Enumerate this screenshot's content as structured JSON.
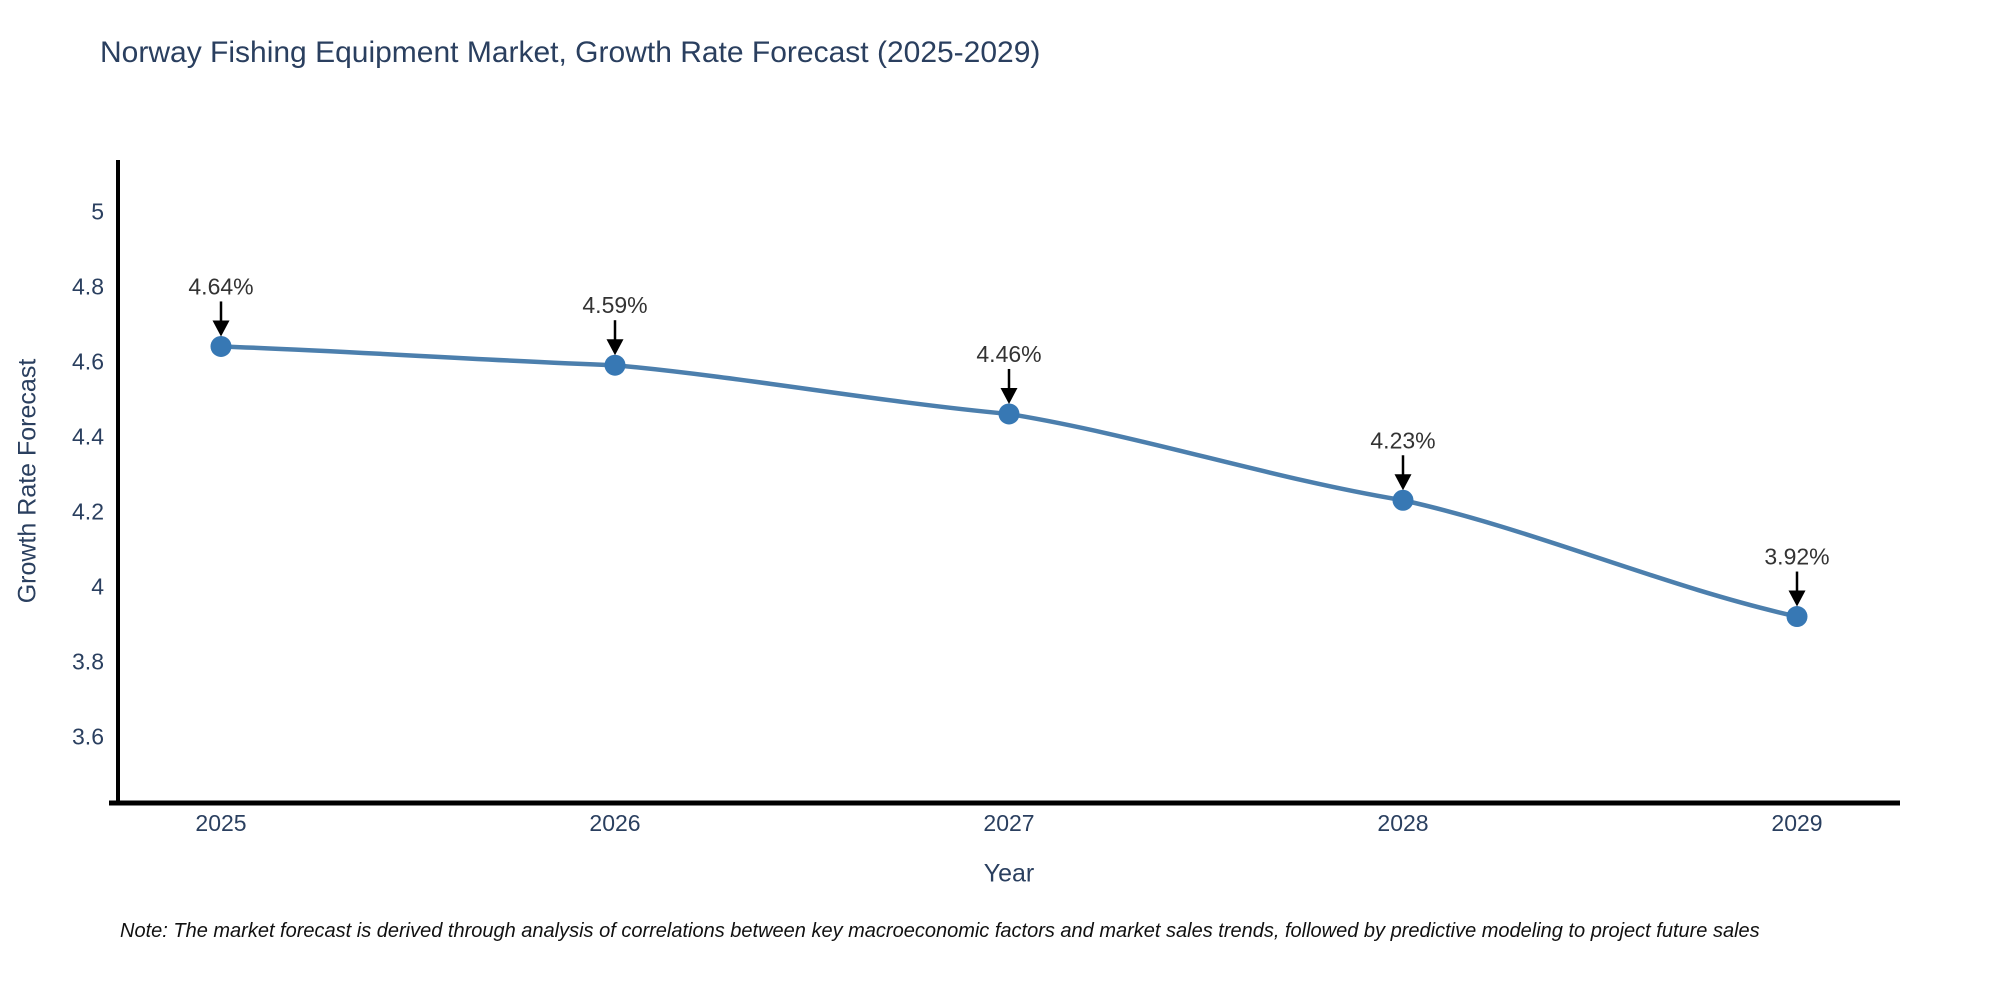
{
  "title": "Norway Fishing Equipment Market, Growth Rate Forecast (2025-2029)",
  "note": "Note: The market forecast is derived through analysis of correlations between key macroeconomic factors and market sales trends, followed by predictive modeling to project future sales",
  "chart_data": {
    "type": "line",
    "title": "Norway Fishing Equipment Market, Growth Rate Forecast (2025-2029)",
    "xlabel": "Year",
    "ylabel": "Growth Rate Forecast",
    "categories": [
      "2025",
      "2026",
      "2027",
      "2028",
      "2029"
    ],
    "series": [
      {
        "name": "Growth Rate Forecast",
        "values": [
          4.64,
          4.59,
          4.46,
          4.23,
          3.92
        ]
      }
    ],
    "point_labels": [
      "4.64%",
      "4.59%",
      "4.46%",
      "4.23%",
      "3.92%"
    ],
    "y_ticks": [
      5,
      4.8,
      4.6,
      4.4,
      4.2,
      4,
      3.8,
      3.6
    ],
    "ylim": [
      3.423,
      5.137
    ],
    "grid": false,
    "legend_position": "none",
    "annotation_style": "black-down-arrows",
    "colors": {
      "line": "#4c7fad",
      "marker": "#3778b4",
      "axis": "#000000",
      "tick_text": "#2a3f5f",
      "title_text": "#2a3f5f",
      "annotation_text": "#333333",
      "arrow": "#000000",
      "background": "#ffffff"
    }
  }
}
